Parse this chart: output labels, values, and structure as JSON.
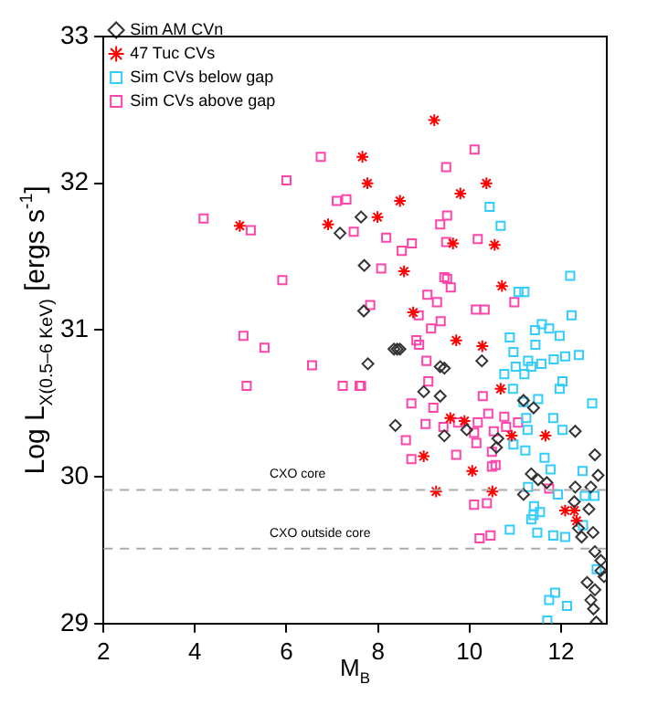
{
  "chart_data": {
    "type": "scatter",
    "xlabel": "M$_{B}$",
    "ylabel": "Log L$_{X(0.5–6 KeV)}$ [ergs s$^{-1}$]",
    "xlim": [
      2,
      13
    ],
    "xticks": [
      2,
      4,
      6,
      8,
      10,
      12
    ],
    "ylim": [
      29,
      33
    ],
    "yticks": [
      29,
      30,
      31,
      32,
      33
    ],
    "grid": false,
    "legend": "top left",
    "ref_lines": [
      {
        "axis": "y",
        "value": 29.91,
        "label": "CXO core",
        "color": "#aaaaaa",
        "line_style": "dashed"
      },
      {
        "axis": "y",
        "value": 29.51,
        "label": "CXO outside core",
        "color": "#aaaaaa",
        "line_style": "dashed"
      }
    ],
    "series": [
      {
        "name": "Sim AM CVn",
        "color": "#333333",
        "marker": "diamond",
        "x": [
          7.63,
          7.17,
          7.7,
          7.69,
          8.42,
          7.78,
          8.35,
          8.48,
          9.36,
          9.45,
          10.27,
          9.0,
          9.36,
          8.38,
          9.45,
          9.94,
          10.62,
          10.59,
          11.18,
          11.4,
          12.31,
          12.74,
          12.81,
          11.35,
          11.5,
          11.69,
          11.18,
          12.31,
          12.65,
          12.29,
          12.61,
          12.38,
          12.45,
          12.7,
          12.74,
          12.87,
          12.87,
          12.94,
          12.57,
          12.74,
          12.65,
          12.71,
          12.77
        ],
        "values": [
          31.77,
          31.66,
          31.44,
          31.13,
          30.87,
          30.77,
          30.87,
          30.87,
          30.75,
          30.74,
          30.79,
          30.58,
          30.55,
          30.35,
          30.28,
          30.32,
          30.26,
          30.2,
          30.52,
          30.47,
          30.31,
          30.15,
          30.01,
          30.02,
          29.98,
          29.96,
          29.88,
          29.93,
          29.93,
          29.83,
          29.78,
          29.65,
          29.59,
          29.62,
          29.49,
          29.43,
          29.36,
          29.32,
          29.28,
          29.23,
          29.16,
          29.1,
          29.01
        ]
      },
      {
        "name": "47 Tuc CVs",
        "color": "#ff0000",
        "marker": "cross",
        "x": [
          7.66,
          7.77,
          4.98,
          6.91,
          9.23,
          8.48,
          7.99,
          9.8,
          10.37,
          9.64,
          10.55,
          8.57,
          10.71,
          8.77,
          9.71,
          10.28,
          10.68,
          9.58,
          9.89,
          10.92,
          11.66,
          9.0,
          10.06,
          9.27,
          10.5,
          12.09,
          12.29,
          12.34
        ],
        "values": [
          32.18,
          32.0,
          31.71,
          31.72,
          32.43,
          31.88,
          31.77,
          31.93,
          32.0,
          31.59,
          31.58,
          31.4,
          31.3,
          31.12,
          30.93,
          30.89,
          30.6,
          30.4,
          30.38,
          30.28,
          30.28,
          30.14,
          30.04,
          29.9,
          29.9,
          29.77,
          29.77,
          29.7
        ]
      },
      {
        "name": "Sim CVs below gap",
        "color": "#33ccff",
        "marker": "square",
        "x": [
          10.44,
          10.68,
          12.2,
          11.07,
          11.2,
          12.23,
          11.58,
          11.74,
          11.43,
          10.88,
          11.97,
          11.44,
          10.96,
          11.28,
          11.84,
          12.09,
          12.39,
          11.57,
          11.01,
          11.35,
          10.76,
          11.2,
          12.03,
          11.97,
          10.95,
          11.5,
          11.18,
          12.68,
          11.24,
          11.83,
          12.03,
          11.27,
          10.96,
          11.22,
          11.64,
          11.77,
          12.47,
          11.28,
          11.93,
          12.52,
          12.73,
          11.41,
          11.54,
          11.35,
          11.4,
          10.88,
          11.48,
          11.83,
          12.09,
          12.48,
          12.78,
          11.87,
          11.74,
          12.13,
          11.7
        ],
        "values": [
          31.84,
          31.71,
          31.37,
          31.26,
          31.26,
          31.1,
          31.04,
          31.01,
          31.0,
          30.95,
          30.96,
          30.9,
          30.85,
          30.79,
          30.8,
          30.82,
          30.83,
          30.77,
          30.75,
          30.75,
          30.7,
          30.7,
          30.65,
          30.6,
          30.6,
          30.53,
          30.51,
          30.5,
          30.4,
          30.4,
          30.32,
          30.32,
          30.22,
          30.18,
          30.13,
          30.05,
          30.04,
          29.93,
          29.88,
          29.87,
          29.87,
          29.8,
          29.76,
          29.71,
          29.74,
          29.64,
          29.62,
          29.6,
          29.59,
          29.67,
          29.37,
          29.21,
          29.16,
          29.12,
          29.02
        ]
      },
      {
        "name": "Sim CVs above gap",
        "color": "#ff44aa",
        "marker": "square",
        "x": [
          6.75,
          6.0,
          7.1,
          7.31,
          4.19,
          5.22,
          7.47,
          5.91,
          5.06,
          5.52,
          10.11,
          9.49,
          9.51,
          9.36,
          8.18,
          8.74,
          8.52,
          9.49,
          10.18,
          8.07,
          9.45,
          9.51,
          9.59,
          9.08,
          9.29,
          10.98,
          7.83,
          8.89,
          9.37,
          9.16,
          10.14,
          10.33,
          8.84,
          8.9,
          9.06,
          9.1,
          7.6,
          10.29,
          8.73,
          9.21,
          9.04,
          9.43,
          9.75,
          10.18,
          10.41,
          10.76,
          11.06,
          10.1,
          10.53,
          10.8,
          8.61,
          10.15,
          10.49,
          8.73,
          9.71,
          10.57,
          10.49,
          11.74,
          10.1,
          10.38,
          10.22,
          10.46,
          6.56,
          5.13,
          7.23,
          7.63
        ],
        "values": [
          32.18,
          32.02,
          31.88,
          31.89,
          31.76,
          31.68,
          31.67,
          31.34,
          30.96,
          30.88,
          32.23,
          32.11,
          31.78,
          31.72,
          31.63,
          31.59,
          31.54,
          31.6,
          31.62,
          31.42,
          31.36,
          31.35,
          31.29,
          31.24,
          31.19,
          31.19,
          31.17,
          31.1,
          31.06,
          31.01,
          31.14,
          31.14,
          30.93,
          30.9,
          30.79,
          30.65,
          30.62,
          30.55,
          30.5,
          30.47,
          30.36,
          30.34,
          30.37,
          30.37,
          30.43,
          30.41,
          30.37,
          30.3,
          30.31,
          30.34,
          30.25,
          30.23,
          30.17,
          30.12,
          30.15,
          30.08,
          30.07,
          29.92,
          29.81,
          29.82,
          29.58,
          29.6,
          30.76,
          30.62,
          30.62,
          30.62
        ]
      }
    ]
  }
}
